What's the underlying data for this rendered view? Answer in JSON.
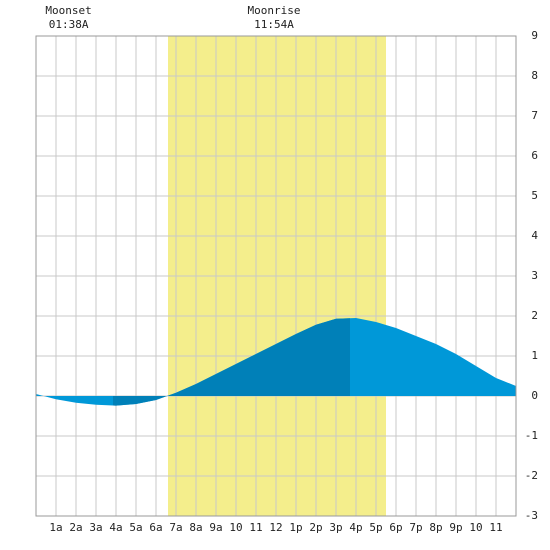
{
  "chart_data": {
    "type": "area",
    "annotations": [
      {
        "label": "Moonset",
        "time": "01:38A",
        "x": 1.63
      },
      {
        "label": "Moonrise",
        "time": "11:54A",
        "x": 11.9
      }
    ],
    "daylight": {
      "from": 6.6,
      "to": 17.5,
      "color": "#f4ee8c"
    },
    "x": [
      0,
      1,
      2,
      3,
      4,
      5,
      6,
      7,
      8,
      9,
      10,
      11,
      12,
      13,
      14,
      15,
      16,
      17,
      18,
      19,
      20,
      21,
      22,
      23,
      24
    ],
    "values": [
      0.05,
      -0.08,
      -0.17,
      -0.22,
      -0.24,
      -0.2,
      -0.1,
      0.08,
      0.3,
      0.55,
      0.8,
      1.05,
      1.3,
      1.55,
      1.78,
      1.93,
      1.95,
      1.85,
      1.7,
      1.5,
      1.3,
      1.05,
      0.75,
      0.45,
      0.25
    ],
    "color": "#0098d8",
    "dark_segment": {
      "from": 3.85,
      "to": 15.7,
      "color": "#0080b8"
    },
    "xlim": [
      0,
      24
    ],
    "xticks": [
      {
        "value": 1,
        "label": "1a"
      },
      {
        "value": 2,
        "label": "2a"
      },
      {
        "value": 3,
        "label": "3a"
      },
      {
        "value": 4,
        "label": "4a"
      },
      {
        "value": 5,
        "label": "5a"
      },
      {
        "value": 6,
        "label": "6a"
      },
      {
        "value": 7,
        "label": "7a"
      },
      {
        "value": 8,
        "label": "8a"
      },
      {
        "value": 9,
        "label": "9a"
      },
      10,
      11,
      12,
      {
        "value": 13,
        "label": "1p"
      },
      {
        "value": 14,
        "label": "2p"
      },
      {
        "value": 15,
        "label": "3p"
      },
      {
        "value": 16,
        "label": "4p"
      },
      {
        "value": 17,
        "label": "5p"
      },
      {
        "value": 18,
        "label": "6p"
      },
      {
        "value": 19,
        "label": "7p"
      },
      {
        "value": 20,
        "label": "8p"
      },
      {
        "value": 21,
        "label": "9p"
      },
      {
        "value": 22,
        "label": "10"
      },
      {
        "value": 23,
        "label": "11"
      }
    ],
    "ylim": [
      -3,
      9
    ],
    "yticks": [
      -3,
      -2,
      -1,
      0,
      1,
      2,
      3,
      4,
      5,
      6,
      7,
      8,
      9
    ],
    "grid": true
  }
}
